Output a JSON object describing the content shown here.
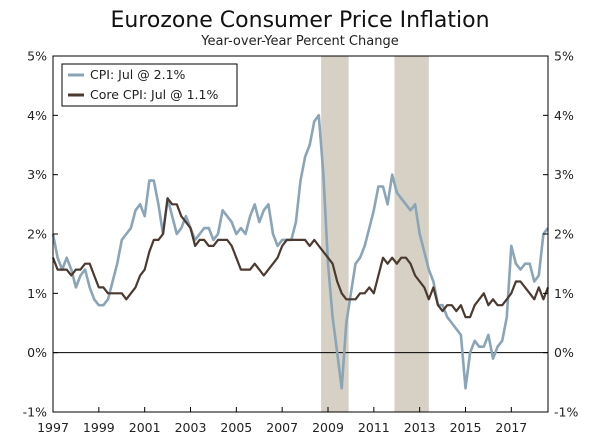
{
  "chart_data": {
    "type": "line",
    "title": "Eurozone Consumer Price Inflation",
    "subtitle": "Year-over-Year Percent Change",
    "xlim": [
      1997.0,
      2018.6
    ],
    "ylim": [
      -1,
      5
    ],
    "y_ticks": [
      -1,
      0,
      1,
      2,
      3,
      4,
      5
    ],
    "y_tick_labels": [
      "-1%",
      "0%",
      "1%",
      "2%",
      "3%",
      "4%",
      "5%"
    ],
    "x_ticks": [
      1997,
      1999,
      2001,
      2003,
      2005,
      2007,
      2009,
      2011,
      2013,
      2015,
      2017
    ],
    "x_tick_labels": [
      "1997",
      "1999",
      "2001",
      "2003",
      "2005",
      "2007",
      "2009",
      "2011",
      "2013",
      "2015",
      "2017"
    ],
    "recessions": [
      [
        2008.7,
        2009.9
      ],
      [
        2011.9,
        2013.4
      ]
    ],
    "legend_position": "top-left",
    "series": [
      {
        "name": "CPI: Jul @ 2.1%",
        "color": "#8aa4b8",
        "x": [
          1997.0,
          1997.2,
          1997.4,
          1997.6,
          1997.8,
          1998.0,
          1998.2,
          1998.4,
          1998.6,
          1998.8,
          1999.0,
          1999.2,
          1999.4,
          1999.6,
          1999.8,
          2000.0,
          2000.2,
          2000.4,
          2000.6,
          2000.8,
          2001.0,
          2001.2,
          2001.4,
          2001.6,
          2001.8,
          2002.0,
          2002.2,
          2002.4,
          2002.6,
          2002.8,
          2003.0,
          2003.2,
          2003.4,
          2003.6,
          2003.8,
          2004.0,
          2004.2,
          2004.4,
          2004.6,
          2004.8,
          2005.0,
          2005.2,
          2005.4,
          2005.6,
          2005.8,
          2006.0,
          2006.2,
          2006.4,
          2006.6,
          2006.8,
          2007.0,
          2007.2,
          2007.4,
          2007.6,
          2007.8,
          2008.0,
          2008.2,
          2008.4,
          2008.6,
          2008.8,
          2009.0,
          2009.2,
          2009.4,
          2009.6,
          2009.8,
          2010.0,
          2010.2,
          2010.4,
          2010.6,
          2010.8,
          2011.0,
          2011.2,
          2011.4,
          2011.6,
          2011.8,
          2012.0,
          2012.2,
          2012.4,
          2012.6,
          2012.8,
          2013.0,
          2013.2,
          2013.4,
          2013.6,
          2013.8,
          2014.0,
          2014.2,
          2014.4,
          2014.6,
          2014.8,
          2015.0,
          2015.2,
          2015.4,
          2015.6,
          2015.8,
          2016.0,
          2016.2,
          2016.4,
          2016.6,
          2016.8,
          2017.0,
          2017.2,
          2017.4,
          2017.6,
          2017.8,
          2018.0,
          2018.2,
          2018.4,
          2018.6
        ],
        "values": [
          2.0,
          1.6,
          1.4,
          1.6,
          1.4,
          1.1,
          1.3,
          1.4,
          1.1,
          0.9,
          0.8,
          0.8,
          0.9,
          1.2,
          1.5,
          1.9,
          2.0,
          2.1,
          2.4,
          2.5,
          2.3,
          2.9,
          2.9,
          2.5,
          2.0,
          2.6,
          2.3,
          2.0,
          2.1,
          2.3,
          2.1,
          1.9,
          2.0,
          2.1,
          2.1,
          1.9,
          2.0,
          2.4,
          2.3,
          2.2,
          2.0,
          2.1,
          2.0,
          2.3,
          2.5,
          2.2,
          2.4,
          2.5,
          2.0,
          1.8,
          1.9,
          1.9,
          1.9,
          2.2,
          2.9,
          3.3,
          3.5,
          3.9,
          4.0,
          3.0,
          1.5,
          0.6,
          0.0,
          -0.6,
          0.5,
          1.0,
          1.5,
          1.6,
          1.8,
          2.1,
          2.4,
          2.8,
          2.8,
          2.5,
          3.0,
          2.7,
          2.6,
          2.5,
          2.4,
          2.5,
          2.0,
          1.7,
          1.4,
          1.2,
          0.8,
          0.8,
          0.6,
          0.5,
          0.4,
          0.3,
          -0.6,
          0.0,
          0.2,
          0.1,
          0.1,
          0.3,
          -0.1,
          0.1,
          0.2,
          0.6,
          1.8,
          1.5,
          1.4,
          1.5,
          1.5,
          1.2,
          1.3,
          2.0,
          2.1
        ]
      },
      {
        "name": "Core CPI: Jul @ 1.1%",
        "color": "#4b3a30",
        "x": [
          1997.0,
          1997.2,
          1997.4,
          1997.6,
          1997.8,
          1998.0,
          1998.2,
          1998.4,
          1998.6,
          1998.8,
          1999.0,
          1999.2,
          1999.4,
          1999.6,
          1999.8,
          2000.0,
          2000.2,
          2000.4,
          2000.6,
          2000.8,
          2001.0,
          2001.2,
          2001.4,
          2001.6,
          2001.8,
          2002.0,
          2002.2,
          2002.4,
          2002.6,
          2002.8,
          2003.0,
          2003.2,
          2003.4,
          2003.6,
          2003.8,
          2004.0,
          2004.2,
          2004.4,
          2004.6,
          2004.8,
          2005.0,
          2005.2,
          2005.4,
          2005.6,
          2005.8,
          2006.0,
          2006.2,
          2006.4,
          2006.6,
          2006.8,
          2007.0,
          2007.2,
          2007.4,
          2007.6,
          2007.8,
          2008.0,
          2008.2,
          2008.4,
          2008.6,
          2008.8,
          2009.0,
          2009.2,
          2009.4,
          2009.6,
          2009.8,
          2010.0,
          2010.2,
          2010.4,
          2010.6,
          2010.8,
          2011.0,
          2011.2,
          2011.4,
          2011.6,
          2011.8,
          2012.0,
          2012.2,
          2012.4,
          2012.6,
          2012.8,
          2013.0,
          2013.2,
          2013.4,
          2013.6,
          2013.8,
          2014.0,
          2014.2,
          2014.4,
          2014.6,
          2014.8,
          2015.0,
          2015.2,
          2015.4,
          2015.6,
          2015.8,
          2016.0,
          2016.2,
          2016.4,
          2016.6,
          2016.8,
          2017.0,
          2017.2,
          2017.4,
          2017.6,
          2017.8,
          2018.0,
          2018.2,
          2018.4,
          2018.6
        ],
        "values": [
          1.6,
          1.4,
          1.4,
          1.4,
          1.3,
          1.4,
          1.4,
          1.5,
          1.5,
          1.3,
          1.1,
          1.1,
          1.0,
          1.0,
          1.0,
          1.0,
          0.9,
          1.0,
          1.1,
          1.3,
          1.4,
          1.7,
          1.9,
          1.9,
          2.0,
          2.6,
          2.5,
          2.5,
          2.3,
          2.2,
          2.1,
          1.8,
          1.9,
          1.9,
          1.8,
          1.8,
          1.9,
          1.9,
          1.9,
          1.8,
          1.6,
          1.4,
          1.4,
          1.4,
          1.5,
          1.4,
          1.3,
          1.4,
          1.5,
          1.6,
          1.8,
          1.9,
          1.9,
          1.9,
          1.9,
          1.9,
          1.8,
          1.9,
          1.8,
          1.7,
          1.6,
          1.5,
          1.2,
          1.0,
          0.9,
          0.9,
          0.9,
          1.0,
          1.0,
          1.1,
          1.0,
          1.3,
          1.6,
          1.5,
          1.6,
          1.5,
          1.6,
          1.6,
          1.5,
          1.3,
          1.2,
          1.1,
          0.9,
          1.1,
          0.8,
          0.7,
          0.8,
          0.8,
          0.7,
          0.8,
          0.6,
          0.6,
          0.8,
          0.9,
          1.0,
          0.8,
          0.9,
          0.8,
          0.8,
          0.9,
          1.0,
          1.2,
          1.2,
          1.1,
          1.0,
          0.9,
          1.1,
          0.9,
          1.1
        ]
      }
    ]
  }
}
